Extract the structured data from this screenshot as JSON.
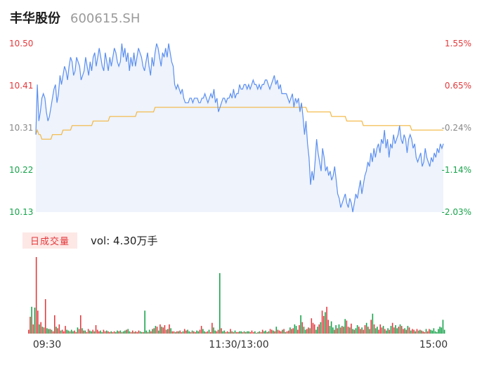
{
  "header": {
    "name": "丰华股份",
    "code": "600615.SH"
  },
  "volume_panel": {
    "badge_label": "日成交量",
    "vol_text": "vol: 4.30万手"
  },
  "colors": {
    "price_line": "#5b8ff0",
    "avg_line": "#f4b63f",
    "area_fill": "#eef3fc",
    "up": "#e4393c",
    "down": "#16a34a",
    "neutral_label": "#888888"
  },
  "chart_data": [
    {
      "type": "line",
      "series": [
        {
          "values": [
            10.3,
            10.41,
            10.33,
            10.35,
            10.38,
            10.39,
            10.38,
            10.35,
            10.33,
            10.34,
            10.36,
            10.38,
            10.4,
            10.41,
            10.37,
            10.39,
            10.43,
            10.41,
            10.43,
            10.45,
            10.44,
            10.42,
            10.45,
            10.47,
            10.46,
            10.43,
            10.44,
            10.47,
            10.46,
            10.45,
            10.42,
            10.43,
            10.44,
            10.47,
            10.45,
            10.43,
            10.46,
            10.44,
            10.47,
            10.48,
            10.45,
            10.47,
            10.49,
            10.47,
            10.45,
            10.44,
            10.48,
            10.46,
            10.44,
            10.47,
            10.45,
            10.47,
            10.49,
            10.48,
            10.46,
            10.45,
            10.46,
            10.5,
            10.47,
            10.49,
            10.46,
            10.48,
            10.44,
            10.47,
            10.45,
            10.48,
            10.45,
            10.47,
            10.49,
            10.48,
            10.47,
            10.45,
            10.44,
            10.46,
            10.48,
            10.45,
            10.43,
            10.47,
            10.45,
            10.48,
            10.5,
            10.49,
            10.47,
            10.45,
            10.48,
            10.47,
            10.49,
            10.47,
            10.5,
            10.48,
            10.46,
            10.45,
            10.41,
            10.4,
            10.41,
            10.4,
            10.39,
            10.4,
            10.38,
            10.37,
            10.37,
            10.37,
            10.38,
            10.38,
            10.37,
            10.38,
            10.38,
            10.38,
            10.37,
            10.37,
            10.38,
            10.38,
            10.39,
            10.38,
            10.37,
            10.38,
            10.39,
            10.38,
            10.4,
            10.37,
            10.38,
            10.35,
            10.36,
            10.37,
            10.38,
            10.38,
            10.37,
            10.38,
            10.38,
            10.39,
            10.38,
            10.4,
            10.38,
            10.39,
            10.39,
            10.41,
            10.4,
            10.4,
            10.41,
            10.41,
            10.4,
            10.41,
            10.4,
            10.41,
            10.42,
            10.41,
            10.41,
            10.4,
            10.41,
            10.4,
            10.41,
            10.41,
            10.42,
            10.42,
            10.41,
            10.4,
            10.41,
            10.42,
            10.43,
            10.41,
            10.42,
            10.4,
            10.41,
            10.39,
            10.39,
            10.39,
            10.39,
            10.38,
            10.37,
            10.38,
            10.39,
            10.36,
            10.38,
            10.37,
            10.38,
            10.35,
            10.37,
            10.34,
            10.3,
            10.33,
            10.28,
            10.25,
            10.19,
            10.22,
            10.2,
            10.24,
            10.29,
            10.26,
            10.24,
            10.22,
            10.27,
            10.25,
            10.22,
            10.23,
            10.21,
            10.22,
            10.2,
            10.21,
            10.23,
            10.2,
            10.17,
            10.16,
            10.14,
            10.15,
            10.16,
            10.17,
            10.15,
            10.14,
            10.16,
            10.15,
            10.13,
            10.15,
            10.17,
            10.16,
            10.18,
            10.2,
            10.17,
            10.19,
            10.21,
            10.22,
            10.24,
            10.23,
            10.26,
            10.24,
            10.27,
            10.25,
            10.27,
            10.28,
            10.26,
            10.29,
            10.28,
            10.31,
            10.27,
            10.29,
            10.25,
            10.28,
            10.27,
            10.3,
            10.28,
            10.29,
            10.3,
            10.32,
            10.29,
            10.28,
            10.3,
            10.29,
            10.26,
            10.29,
            10.3,
            10.29,
            10.27,
            10.28,
            10.25,
            10.24,
            10.25,
            10.26,
            10.23,
            10.24,
            10.27,
            10.25,
            10.24,
            10.23,
            10.25,
            10.24,
            10.26,
            10.25,
            10.27,
            10.26,
            10.28,
            10.27,
            10.28
          ]
        },
        {
          "values": [
            10.3,
            10.31,
            10.3,
            10.3,
            10.29,
            10.29,
            10.29,
            10.29,
            10.29,
            10.29,
            10.29,
            10.3,
            10.3,
            10.3,
            10.3,
            10.3,
            10.3,
            10.3,
            10.31,
            10.31,
            10.31,
            10.31,
            10.31,
            10.31,
            10.32,
            10.32,
            10.32,
            10.32,
            10.32,
            10.32,
            10.32,
            10.32,
            10.32,
            10.32,
            10.32,
            10.32,
            10.32,
            10.32,
            10.33,
            10.33,
            10.33,
            10.33,
            10.33,
            10.33,
            10.33,
            10.33,
            10.33,
            10.33,
            10.33,
            10.34,
            10.34,
            10.34,
            10.34,
            10.34,
            10.34,
            10.34,
            10.34,
            10.34,
            10.34,
            10.34,
            10.34,
            10.34,
            10.34,
            10.34,
            10.34,
            10.34,
            10.34,
            10.35,
            10.35,
            10.35,
            10.35,
            10.35,
            10.35,
            10.35,
            10.35,
            10.35,
            10.35,
            10.35,
            10.35,
            10.36,
            10.36,
            10.36,
            10.36,
            10.36,
            10.36,
            10.36,
            10.36,
            10.36,
            10.36,
            10.36,
            10.36,
            10.36,
            10.36,
            10.36,
            10.36,
            10.36,
            10.36,
            10.36,
            10.36,
            10.36,
            10.36,
            10.36,
            10.36,
            10.36,
            10.36,
            10.36,
            10.36,
            10.36,
            10.36,
            10.36,
            10.36,
            10.36,
            10.36,
            10.36,
            10.36,
            10.36,
            10.36,
            10.36,
            10.36,
            10.36,
            10.36,
            10.36,
            10.36,
            10.36,
            10.36,
            10.36,
            10.36,
            10.36,
            10.36,
            10.36,
            10.36,
            10.36,
            10.36,
            10.36,
            10.36,
            10.36,
            10.36,
            10.36,
            10.36,
            10.36,
            10.36,
            10.36,
            10.36,
            10.36,
            10.36,
            10.36,
            10.36,
            10.36,
            10.36,
            10.36,
            10.36,
            10.36,
            10.36,
            10.36,
            10.36,
            10.36,
            10.36,
            10.36,
            10.36,
            10.36,
            10.36,
            10.36,
            10.36,
            10.36,
            10.36,
            10.36,
            10.36,
            10.36,
            10.36,
            10.36,
            10.36,
            10.36,
            10.36,
            10.36,
            10.36,
            10.36,
            10.36,
            10.36,
            10.36,
            10.36,
            10.35,
            10.35,
            10.35,
            10.35,
            10.35,
            10.35,
            10.35,
            10.35,
            10.35,
            10.35,
            10.35,
            10.35,
            10.35,
            10.35,
            10.35,
            10.35,
            10.34,
            10.34,
            10.34,
            10.34,
            10.34,
            10.34,
            10.34,
            10.34,
            10.34,
            10.34,
            10.33,
            10.33,
            10.33,
            10.33,
            10.33,
            10.33,
            10.33,
            10.33,
            10.33,
            10.33,
            10.33,
            10.32,
            10.32,
            10.32,
            10.32,
            10.32,
            10.32,
            10.32,
            10.32,
            10.32,
            10.32,
            10.32,
            10.32,
            10.32,
            10.32,
            10.32,
            10.32,
            10.32,
            10.32,
            10.32,
            10.32,
            10.32,
            10.32,
            10.32,
            10.32,
            10.32,
            10.32,
            10.32,
            10.32,
            10.32,
            10.32,
            10.32,
            10.32,
            10.31,
            10.31,
            10.31,
            10.31,
            10.31,
            10.31,
            10.31,
            10.31,
            10.31,
            10.31,
            10.31,
            10.31,
            10.31,
            10.31,
            10.31,
            10.31,
            10.31,
            10.31,
            10.31,
            10.31,
            10.31,
            10.31
          ]
        }
      ],
      "ylim": [
        10.13,
        10.5
      ],
      "y_ticks_left": [
        "10.50",
        "10.41",
        "10.31",
        "10.22",
        "10.13"
      ],
      "y_ticks_right": [
        "1.55%",
        "0.65%",
        "-0.24%",
        "-1.14%",
        "-2.03%"
      ]
    },
    {
      "type": "bar",
      "ylim": [
        0,
        100
      ],
      "values": [
        5,
        22,
        35,
        12,
        34,
        100,
        30,
        12,
        15,
        9,
        8,
        45,
        7,
        6,
        6,
        5,
        3,
        24,
        9,
        7,
        12,
        4,
        5,
        3,
        10,
        5,
        4,
        3,
        5,
        3,
        4,
        2,
        8,
        6,
        24,
        7,
        4,
        4,
        2,
        6,
        4,
        3,
        5,
        3,
        11,
        5,
        3,
        4,
        2,
        5,
        3,
        4,
        3,
        2,
        3,
        2,
        3,
        2,
        4,
        3,
        4,
        2,
        3,
        4,
        5,
        6,
        3,
        2,
        4,
        2,
        3,
        2,
        4,
        3,
        2,
        2,
        30,
        4,
        2,
        5,
        3,
        6,
        7,
        10,
        9,
        4,
        12,
        9,
        8,
        11,
        5,
        6,
        12,
        7,
        3,
        3,
        2,
        3,
        3,
        4,
        2,
        3,
        6,
        4,
        5,
        3,
        2,
        4,
        3,
        2,
        4,
        3,
        5,
        10,
        6,
        3,
        2,
        3,
        5,
        2,
        14,
        8,
        4,
        3,
        5,
        79,
        7,
        3,
        4,
        2,
        3,
        2,
        6,
        3,
        2,
        4,
        2,
        2,
        3,
        3,
        2,
        3,
        2,
        3,
        3,
        2,
        4,
        2,
        3,
        1,
        2,
        3,
        2,
        5,
        3,
        4,
        2,
        3,
        6,
        5,
        4,
        3,
        9,
        5,
        4,
        3,
        5,
        6,
        2,
        3,
        4,
        8,
        6,
        7,
        12,
        10,
        5,
        11,
        24,
        15,
        9,
        5,
        6,
        8,
        7,
        20,
        14,
        12,
        5,
        9,
        12,
        15,
        30,
        23,
        28,
        35,
        18,
        10,
        16,
        8,
        5,
        11,
        7,
        12,
        8,
        10,
        9,
        19,
        17,
        9,
        8,
        13,
        6,
        5,
        7,
        11,
        9,
        6,
        8,
        5,
        11,
        14,
        9,
        6,
        18,
        26,
        12,
        7,
        9,
        5,
        12,
        8,
        10,
        6,
        4,
        7,
        5,
        10,
        14,
        8,
        11,
        7,
        9,
        12,
        10,
        6,
        7,
        5,
        10,
        8,
        4,
        6,
        5,
        3,
        6,
        4,
        5,
        4,
        3,
        2,
        6,
        3,
        6,
        5,
        4,
        7,
        3,
        2,
        6,
        9,
        8,
        18,
        5
      ],
      "direction": [
        "up",
        "up",
        "down",
        "up",
        "down",
        "up",
        "up",
        "down",
        "up",
        "down",
        "up",
        "up",
        "down",
        "down",
        "up",
        "down",
        "up",
        "up",
        "down",
        "up",
        "up",
        "down",
        "up",
        "up",
        "up",
        "down",
        "down",
        "up",
        "down",
        "down",
        "up",
        "up",
        "down",
        "up",
        "up",
        "down",
        "up",
        "down",
        "up",
        "up",
        "down",
        "down",
        "up",
        "down",
        "up",
        "up",
        "up",
        "down",
        "down",
        "up",
        "up",
        "down",
        "up",
        "up",
        "down",
        "up",
        "up",
        "down",
        "down",
        "up",
        "down",
        "up",
        "down",
        "down",
        "up",
        "down",
        "down",
        "up",
        "up",
        "down",
        "up",
        "up",
        "up",
        "down",
        "down",
        "up",
        "down",
        "down",
        "up",
        "down",
        "up",
        "down",
        "up",
        "down",
        "up",
        "down",
        "up",
        "down",
        "up",
        "up",
        "up",
        "down",
        "up",
        "down",
        "up",
        "up",
        "down",
        "up",
        "down",
        "up",
        "up",
        "down",
        "up",
        "up",
        "down",
        "down",
        "up",
        "down",
        "up",
        "up",
        "down",
        "down",
        "up",
        "up",
        "down",
        "down",
        "up",
        "up",
        "down",
        "up",
        "up",
        "down",
        "down",
        "up",
        "up",
        "down",
        "up",
        "down",
        "down",
        "up",
        "up",
        "down",
        "up",
        "down",
        "up",
        "down",
        "up",
        "up",
        "down",
        "down",
        "up",
        "down",
        "up",
        "down",
        "down",
        "up",
        "up",
        "up",
        "down",
        "down",
        "up",
        "down",
        "up",
        "up",
        "down",
        "down",
        "up",
        "down",
        "up",
        "up",
        "down",
        "up",
        "down",
        "up",
        "up",
        "up",
        "down",
        "up",
        "down",
        "up",
        "up",
        "down",
        "up",
        "up",
        "down",
        "down",
        "up",
        "up",
        "down",
        "up",
        "down",
        "down",
        "up",
        "up",
        "down",
        "up",
        "up",
        "up",
        "down",
        "down",
        "up",
        "down",
        "up",
        "up",
        "down",
        "up",
        "up",
        "down",
        "down",
        "down",
        "up",
        "down",
        "up",
        "down",
        "up",
        "down",
        "up",
        "down",
        "up",
        "up",
        "down",
        "up",
        "down",
        "up",
        "down",
        "down",
        "up",
        "up",
        "down",
        "up",
        "up",
        "down",
        "up",
        "down",
        "up",
        "down",
        "up",
        "down",
        "down",
        "up",
        "up",
        "up",
        "down",
        "up",
        "down",
        "down",
        "up",
        "down",
        "up",
        "up",
        "down",
        "down",
        "up",
        "down",
        "up",
        "up",
        "down",
        "up",
        "down",
        "up",
        "down",
        "up",
        "up",
        "down",
        "up",
        "down",
        "up",
        "down",
        "up",
        "up",
        "down",
        "up",
        "up"
      ],
      "x_ticks": [
        "09:30",
        "11:30/13:00",
        "15:00"
      ]
    }
  ]
}
